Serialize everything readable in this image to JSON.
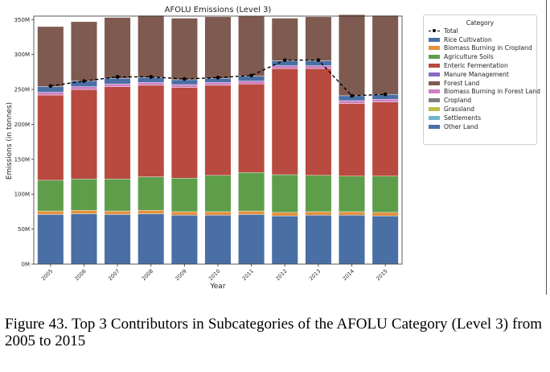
{
  "caption": "Figure 43.  Top 3 Contributors in Subcategories of the AFOLU Category (Level 3) from 2005 to 2015",
  "chart_data": {
    "type": "bar",
    "stacked": true,
    "title": "AFOLU Emissions (Level 3)",
    "xlabel": "Year",
    "ylabel": "Emissions (in tonnes)",
    "ylim": [
      0,
      355000000
    ],
    "yticks": [
      0,
      50000000,
      100000000,
      150000000,
      200000000,
      250000000,
      300000000,
      350000000
    ],
    "ytick_labels": [
      "0M",
      "50M",
      "100M",
      "150M",
      "200M",
      "250M",
      "300M",
      "350M"
    ],
    "grid": false,
    "legend_title": "Category",
    "legend_position": "outside-right",
    "categories": [
      "2005",
      "2006",
      "2007",
      "2008",
      "2009",
      "2010",
      "2011",
      "2012",
      "2013",
      "2014",
      "2015"
    ],
    "series": [
      {
        "name": "Other Land",
        "color": "#4a6fa5",
        "values": [
          71000000,
          72000000,
          71000000,
          72000000,
          70000000,
          70000000,
          71000000,
          69000000,
          70000000,
          70000000,
          69000000
        ]
      },
      {
        "name": "Settlements",
        "color": "#6fb6cf",
        "values": [
          0,
          0,
          0,
          0,
          0,
          0,
          0,
          0,
          0,
          0,
          0
        ]
      },
      {
        "name": "Grassland",
        "color": "#bdbd4a",
        "values": [
          0,
          0,
          0,
          0,
          0,
          0,
          0,
          0,
          0,
          0,
          0
        ]
      },
      {
        "name": "Cropland",
        "color": "#7f7f7f",
        "values": [
          0,
          0,
          0,
          0,
          0,
          0,
          0,
          0,
          0,
          0,
          0
        ]
      },
      {
        "name": "Biomass Burning in Forest Land",
        "color": "#d07fc4",
        "values": [
          0,
          0,
          0,
          0,
          0,
          0,
          0,
          0,
          0,
          0,
          0
        ]
      },
      {
        "name": "Biomass Burning in Cropland",
        "color": "#e3923f",
        "values": [
          5000000,
          5000000,
          5000000,
          5000000,
          5000000,
          5000000,
          5000000,
          5000000,
          5000000,
          5000000,
          5000000
        ]
      },
      {
        "name": "Agriculture Soils",
        "color": "#5e9e4b",
        "values": [
          44000000,
          45000000,
          46000000,
          48000000,
          48000000,
          52000000,
          55000000,
          54000000,
          52000000,
          51000000,
          52000000
        ]
      },
      {
        "name": "Enteric Fermentation",
        "color": "#b84a3f",
        "values": [
          122000000,
          128000000,
          132000000,
          131000000,
          130000000,
          129000000,
          127000000,
          152000000,
          153000000,
          104000000,
          106000000
        ]
      },
      {
        "name": "Manure Management",
        "color": "#8a6cc4",
        "values": [
          0,
          0,
          0,
          0,
          0,
          0,
          0,
          0,
          0,
          0,
          0
        ]
      },
      {
        "name": "Biomass Burning in Forest Land",
        "color": "#d07fc4",
        "values": [
          4000000,
          4000000,
          4000000,
          4000000,
          4000000,
          4000000,
          4000000,
          4000000,
          4000000,
          4000000,
          4000000
        ]
      },
      {
        "name": "Rice Cultivation",
        "color": "#4a6fa5",
        "values": [
          8000000,
          8000000,
          8000000,
          7000000,
          7000000,
          6000000,
          7000000,
          7000000,
          7000000,
          7000000,
          7000000
        ]
      },
      {
        "name": "Forest Land",
        "color": "#7e5a50",
        "values": [
          86000000,
          85000000,
          87000000,
          89000000,
          88000000,
          88000000,
          86000000,
          61000000,
          63000000,
          116000000,
          113000000
        ]
      }
    ],
    "line_series": {
      "name": "Total",
      "color": "#000000",
      "style": "dashed",
      "marker": "circle",
      "values": [
        255000000,
        262000000,
        268000000,
        268000000,
        265000000,
        267000000,
        270000000,
        292000000,
        292000000,
        241000000,
        243000000
      ]
    },
    "legend": [
      {
        "label": "Total",
        "kind": "line",
        "color": "#000000"
      },
      {
        "label": "Rice Cultivation",
        "kind": "patch",
        "color": "#4a6fa5"
      },
      {
        "label": "Biomass Burning in Cropland",
        "kind": "patch",
        "color": "#e3923f"
      },
      {
        "label": "Agriculture Soils",
        "kind": "patch",
        "color": "#5e9e4b"
      },
      {
        "label": "Enteric Fermentation",
        "kind": "patch",
        "color": "#b84a3f"
      },
      {
        "label": "Manure Management",
        "kind": "patch",
        "color": "#8a6cc4"
      },
      {
        "label": "Forest Land",
        "kind": "patch",
        "color": "#7e5a50"
      },
      {
        "label": "Biomass Burning in Forest Land",
        "kind": "patch",
        "color": "#d07fc4"
      },
      {
        "label": "Cropland",
        "kind": "patch",
        "color": "#7f7f7f"
      },
      {
        "label": "Grassland",
        "kind": "patch",
        "color": "#bdbd4a"
      },
      {
        "label": "Settlements",
        "kind": "patch",
        "color": "#6fb6cf"
      },
      {
        "label": "Other Land",
        "kind": "patch",
        "color": "#4a6fa5"
      }
    ]
  }
}
